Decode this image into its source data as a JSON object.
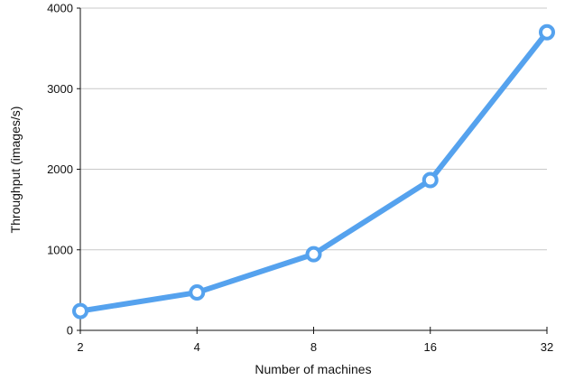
{
  "chart_data": {
    "type": "line",
    "title": "",
    "xlabel": "Number of machines",
    "ylabel": "Throughput (images/s)",
    "categories": [
      "2",
      "4",
      "8",
      "16",
      "32"
    ],
    "series": [
      {
        "values": [
          240,
          470,
          945,
          1865,
          3700
        ]
      }
    ],
    "ylim": [
      0,
      4000
    ],
    "yticks": [
      "0",
      "1000",
      "2000",
      "3000",
      "4000"
    ],
    "grid": true,
    "legend": "none",
    "line_color": "#55a2ee",
    "gridline_color": "#c8c8c8",
    "axis_color": "#111111"
  }
}
